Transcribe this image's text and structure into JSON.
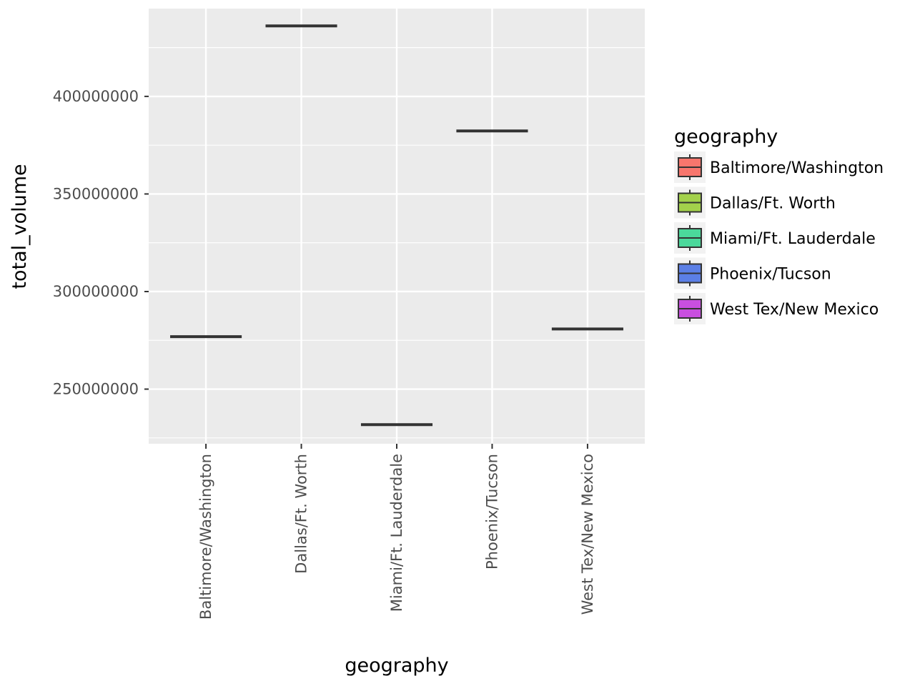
{
  "chart_data": {
    "type": "box",
    "title": "",
    "xlabel": "geography",
    "ylabel": "total_volume",
    "categories": [
      "Baltimore/Washington",
      "Dallas/Ft. Worth",
      "Miami/Ft. Lauderdale",
      "Phoenix/Tucson",
      "West Tex/New Mexico"
    ],
    "values": [
      276900000,
      436100000,
      231800000,
      382300000,
      280800000
    ],
    "ylim": [
      222000000,
      445000000
    ],
    "yticks": [
      250000000,
      300000000,
      350000000,
      400000000
    ],
    "ytick_labels": [
      "250000000",
      "300000000",
      "350000000",
      "400000000"
    ],
    "grid": true,
    "legend": {
      "title": "geography",
      "placement": "right",
      "entries": [
        {
          "label": "Baltimore/Washington",
          "color": "#F8766D"
        },
        {
          "label": "Dallas/Ft. Worth",
          "color": "#A3D14B"
        },
        {
          "label": "Miami/Ft. Lauderdale",
          "color": "#4BD89B"
        },
        {
          "label": "Phoenix/Tucson",
          "color": "#5B7FE6"
        },
        {
          "label": "West Tex/New Mexico",
          "color": "#C94FE0"
        }
      ]
    },
    "colors": {
      "panel_background": "#EBEBEB",
      "grid_major": "#FFFFFF",
      "box_line": "#333333"
    }
  }
}
